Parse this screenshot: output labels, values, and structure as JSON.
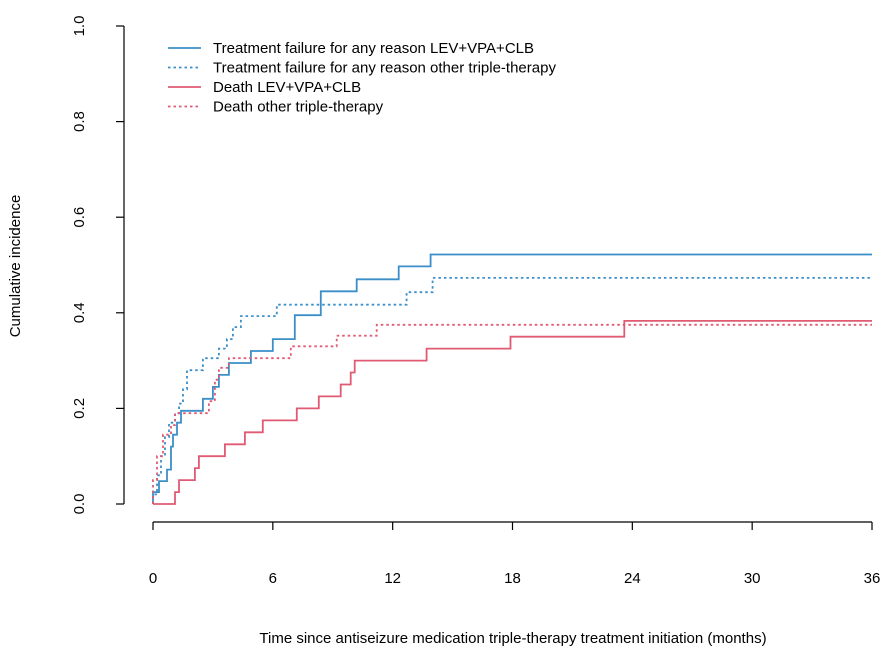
{
  "chart_data": {
    "type": "line",
    "step": true,
    "xlabel": "Time since antiseizure medication triple-therapy treatment initiation (months)",
    "ylabel": "Cumulative incidence",
    "xlim": [
      0,
      36
    ],
    "ylim": [
      0,
      1
    ],
    "x_ticks": [
      0,
      6,
      12,
      18,
      24,
      30,
      36
    ],
    "y_ticks": [
      0.0,
      0.2,
      0.4,
      0.6,
      0.8,
      1.0
    ],
    "x_tick_labels": [
      "0",
      "6",
      "12",
      "18",
      "24",
      "30",
      "36"
    ],
    "y_tick_labels": [
      "0.0",
      "0.2",
      "0.4",
      "0.6",
      "0.8",
      "1.0"
    ],
    "grid": false,
    "legend_position": "top-left",
    "series": [
      {
        "name": "Treatment failure for any reason LEV+VPA+CLB",
        "color": "#3b8fc9",
        "dash": "solid",
        "points": [
          [
            0,
            0
          ],
          [
            0,
            0.025
          ],
          [
            0.3,
            0.025
          ],
          [
            0.3,
            0.048
          ],
          [
            0.7,
            0.048
          ],
          [
            0.7,
            0.072
          ],
          [
            0.9,
            0.072
          ],
          [
            0.9,
            0.12
          ],
          [
            1.0,
            0.12
          ],
          [
            1.0,
            0.145
          ],
          [
            1.2,
            0.145
          ],
          [
            1.2,
            0.17
          ],
          [
            1.4,
            0.17
          ],
          [
            1.4,
            0.195
          ],
          [
            2.5,
            0.195
          ],
          [
            2.5,
            0.22
          ],
          [
            3.0,
            0.22
          ],
          [
            3.0,
            0.245
          ],
          [
            3.3,
            0.245
          ],
          [
            3.3,
            0.27
          ],
          [
            3.8,
            0.27
          ],
          [
            3.8,
            0.295
          ],
          [
            4.9,
            0.295
          ],
          [
            4.9,
            0.32
          ],
          [
            6.0,
            0.32
          ],
          [
            6.0,
            0.345
          ],
          [
            7.1,
            0.345
          ],
          [
            7.1,
            0.395
          ],
          [
            8.4,
            0.395
          ],
          [
            8.4,
            0.445
          ],
          [
            10.2,
            0.445
          ],
          [
            10.2,
            0.47
          ],
          [
            12.3,
            0.47
          ],
          [
            12.3,
            0.497
          ],
          [
            13.9,
            0.497
          ],
          [
            13.9,
            0.522
          ],
          [
            36,
            0.522
          ]
        ]
      },
      {
        "name": "Treatment failure for any reason other triple-therapy",
        "color": "#3b8fc9",
        "dash": "dotted",
        "points": [
          [
            0,
            0
          ],
          [
            0,
            0.02
          ],
          [
            0.2,
            0.02
          ],
          [
            0.2,
            0.06
          ],
          [
            0.4,
            0.06
          ],
          [
            0.4,
            0.1
          ],
          [
            0.6,
            0.1
          ],
          [
            0.6,
            0.14
          ],
          [
            0.8,
            0.14
          ],
          [
            0.8,
            0.17
          ],
          [
            1.1,
            0.17
          ],
          [
            1.1,
            0.19
          ],
          [
            1.3,
            0.19
          ],
          [
            1.3,
            0.21
          ],
          [
            1.5,
            0.21
          ],
          [
            1.5,
            0.24
          ],
          [
            1.7,
            0.24
          ],
          [
            1.7,
            0.28
          ],
          [
            2.5,
            0.28
          ],
          [
            2.5,
            0.305
          ],
          [
            3.3,
            0.305
          ],
          [
            3.3,
            0.325
          ],
          [
            3.7,
            0.325
          ],
          [
            3.7,
            0.345
          ],
          [
            4.0,
            0.345
          ],
          [
            4.0,
            0.37
          ],
          [
            4.4,
            0.37
          ],
          [
            4.4,
            0.393
          ],
          [
            6.2,
            0.393
          ],
          [
            6.2,
            0.417
          ],
          [
            12.7,
            0.417
          ],
          [
            12.7,
            0.443
          ],
          [
            14.0,
            0.443
          ],
          [
            14.0,
            0.473
          ],
          [
            36,
            0.473
          ]
        ]
      },
      {
        "name": "Death LEV+VPA+CLB",
        "color": "#e05a73",
        "dash": "solid",
        "points": [
          [
            0,
            0
          ],
          [
            1.1,
            0
          ],
          [
            1.1,
            0.025
          ],
          [
            1.3,
            0.025
          ],
          [
            1.3,
            0.05
          ],
          [
            2.1,
            0.05
          ],
          [
            2.1,
            0.075
          ],
          [
            2.3,
            0.075
          ],
          [
            2.3,
            0.1
          ],
          [
            3.6,
            0.1
          ],
          [
            3.6,
            0.125
          ],
          [
            4.6,
            0.125
          ],
          [
            4.6,
            0.15
          ],
          [
            5.5,
            0.15
          ],
          [
            5.5,
            0.175
          ],
          [
            7.2,
            0.175
          ],
          [
            7.2,
            0.2
          ],
          [
            8.3,
            0.2
          ],
          [
            8.3,
            0.225
          ],
          [
            9.4,
            0.225
          ],
          [
            9.4,
            0.25
          ],
          [
            9.9,
            0.25
          ],
          [
            9.9,
            0.275
          ],
          [
            10.1,
            0.275
          ],
          [
            10.1,
            0.3
          ],
          [
            13.7,
            0.3
          ],
          [
            13.7,
            0.325
          ],
          [
            17.9,
            0.325
          ],
          [
            17.9,
            0.35
          ],
          [
            23.6,
            0.35
          ],
          [
            23.6,
            0.383
          ],
          [
            36,
            0.383
          ]
        ]
      },
      {
        "name": "Death other triple-therapy",
        "color": "#e05a73",
        "dash": "dotted",
        "points": [
          [
            0,
            0
          ],
          [
            0,
            0.05
          ],
          [
            0.2,
            0.05
          ],
          [
            0.2,
            0.1
          ],
          [
            0.5,
            0.1
          ],
          [
            0.5,
            0.145
          ],
          [
            0.9,
            0.145
          ],
          [
            0.9,
            0.165
          ],
          [
            1.1,
            0.165
          ],
          [
            1.1,
            0.19
          ],
          [
            2.8,
            0.19
          ],
          [
            2.8,
            0.215
          ],
          [
            3.1,
            0.215
          ],
          [
            3.1,
            0.26
          ],
          [
            3.3,
            0.26
          ],
          [
            3.3,
            0.285
          ],
          [
            3.8,
            0.285
          ],
          [
            3.8,
            0.305
          ],
          [
            6.9,
            0.305
          ],
          [
            6.9,
            0.33
          ],
          [
            9.2,
            0.33
          ],
          [
            9.2,
            0.352
          ],
          [
            11.2,
            0.352
          ],
          [
            11.2,
            0.375
          ],
          [
            36,
            0.375
          ]
        ]
      }
    ]
  }
}
